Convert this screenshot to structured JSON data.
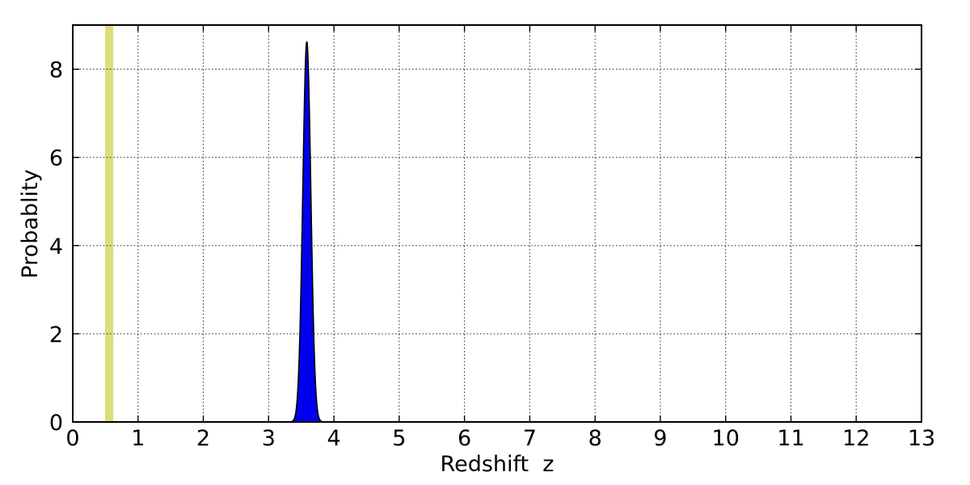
{
  "figure": {
    "background_color": "#ffffff",
    "spine_color": "#000000",
    "text_color": "#000000"
  },
  "chart_data": {
    "type": "area",
    "title": "",
    "xlabel": "Redshift  z",
    "ylabel": "Probablity",
    "xlim": [
      0,
      13
    ],
    "ylim": [
      0,
      9
    ],
    "x_ticks": [
      0,
      1,
      2,
      3,
      4,
      5,
      6,
      7,
      8,
      9,
      10,
      11,
      12,
      13
    ],
    "x_tick_labels": [
      "0",
      "1",
      "2",
      "3",
      "4",
      "5",
      "6",
      "7",
      "8",
      "9",
      "10",
      "11",
      "12",
      "13"
    ],
    "y_ticks": [
      0,
      2,
      4,
      6,
      8
    ],
    "y_tick_labels": [
      "0",
      "2",
      "4",
      "6",
      "8"
    ],
    "grid": {
      "visible": true,
      "style": "dotted",
      "color": "#333333",
      "x_lines": [
        1,
        2,
        3,
        4,
        5,
        6,
        7,
        8,
        9,
        10,
        11,
        12
      ],
      "y_lines": [
        2,
        4,
        6,
        8
      ]
    },
    "legend": null,
    "series": [
      {
        "name": "redshift-probability-pdf",
        "type": "filled_gaussian",
        "fill_color": "#0000ee",
        "edge_color": "#000000",
        "peak_center": 3.585,
        "peak_sigma": 0.062,
        "peak_amplitude": 8.62,
        "points": [
          [
            3.35,
            0.02
          ],
          [
            3.4,
            0.2
          ],
          [
            3.45,
            1.32
          ],
          [
            3.5,
            4.56
          ],
          [
            3.55,
            8.18
          ],
          [
            3.585,
            8.62
          ],
          [
            3.62,
            7.45
          ],
          [
            3.65,
            3.75
          ],
          [
            3.7,
            0.96
          ],
          [
            3.75,
            0.13
          ],
          [
            3.8,
            0.01
          ]
        ]
      }
    ],
    "annotations": [
      {
        "name": "highlight-band",
        "type": "vspan",
        "x0": 0.495,
        "x1": 0.62,
        "color": "#dedd7b"
      }
    ]
  }
}
